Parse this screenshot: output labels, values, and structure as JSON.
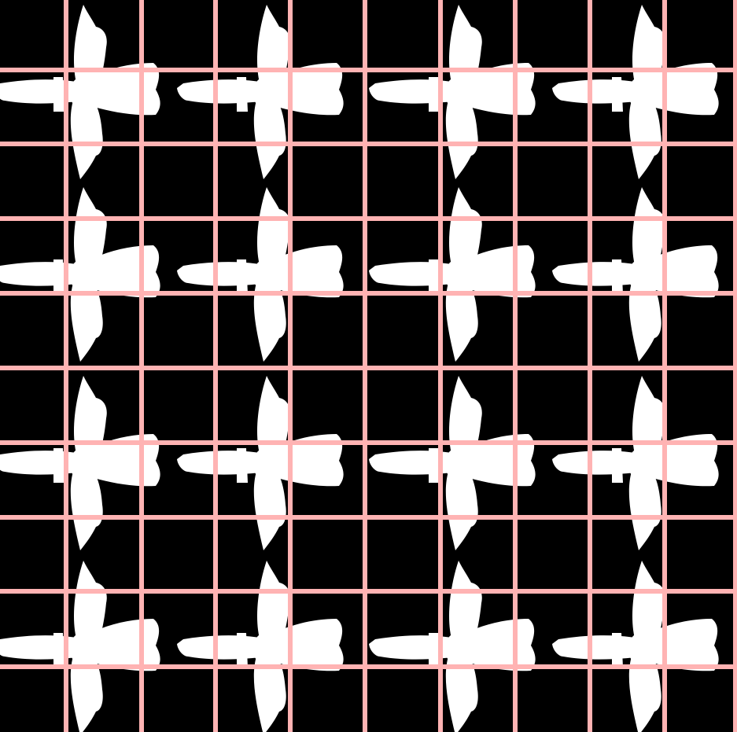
{
  "scene": {
    "background_color": "#000000",
    "shape_color": "#ffffff",
    "grid_color": "#ffb3b3",
    "shape_name": "four-petal-flower-shape",
    "shape_rows": 4,
    "shape_columns": 4,
    "grid_vertical_lines": 10,
    "grid_horizontal_lines": 9
  }
}
